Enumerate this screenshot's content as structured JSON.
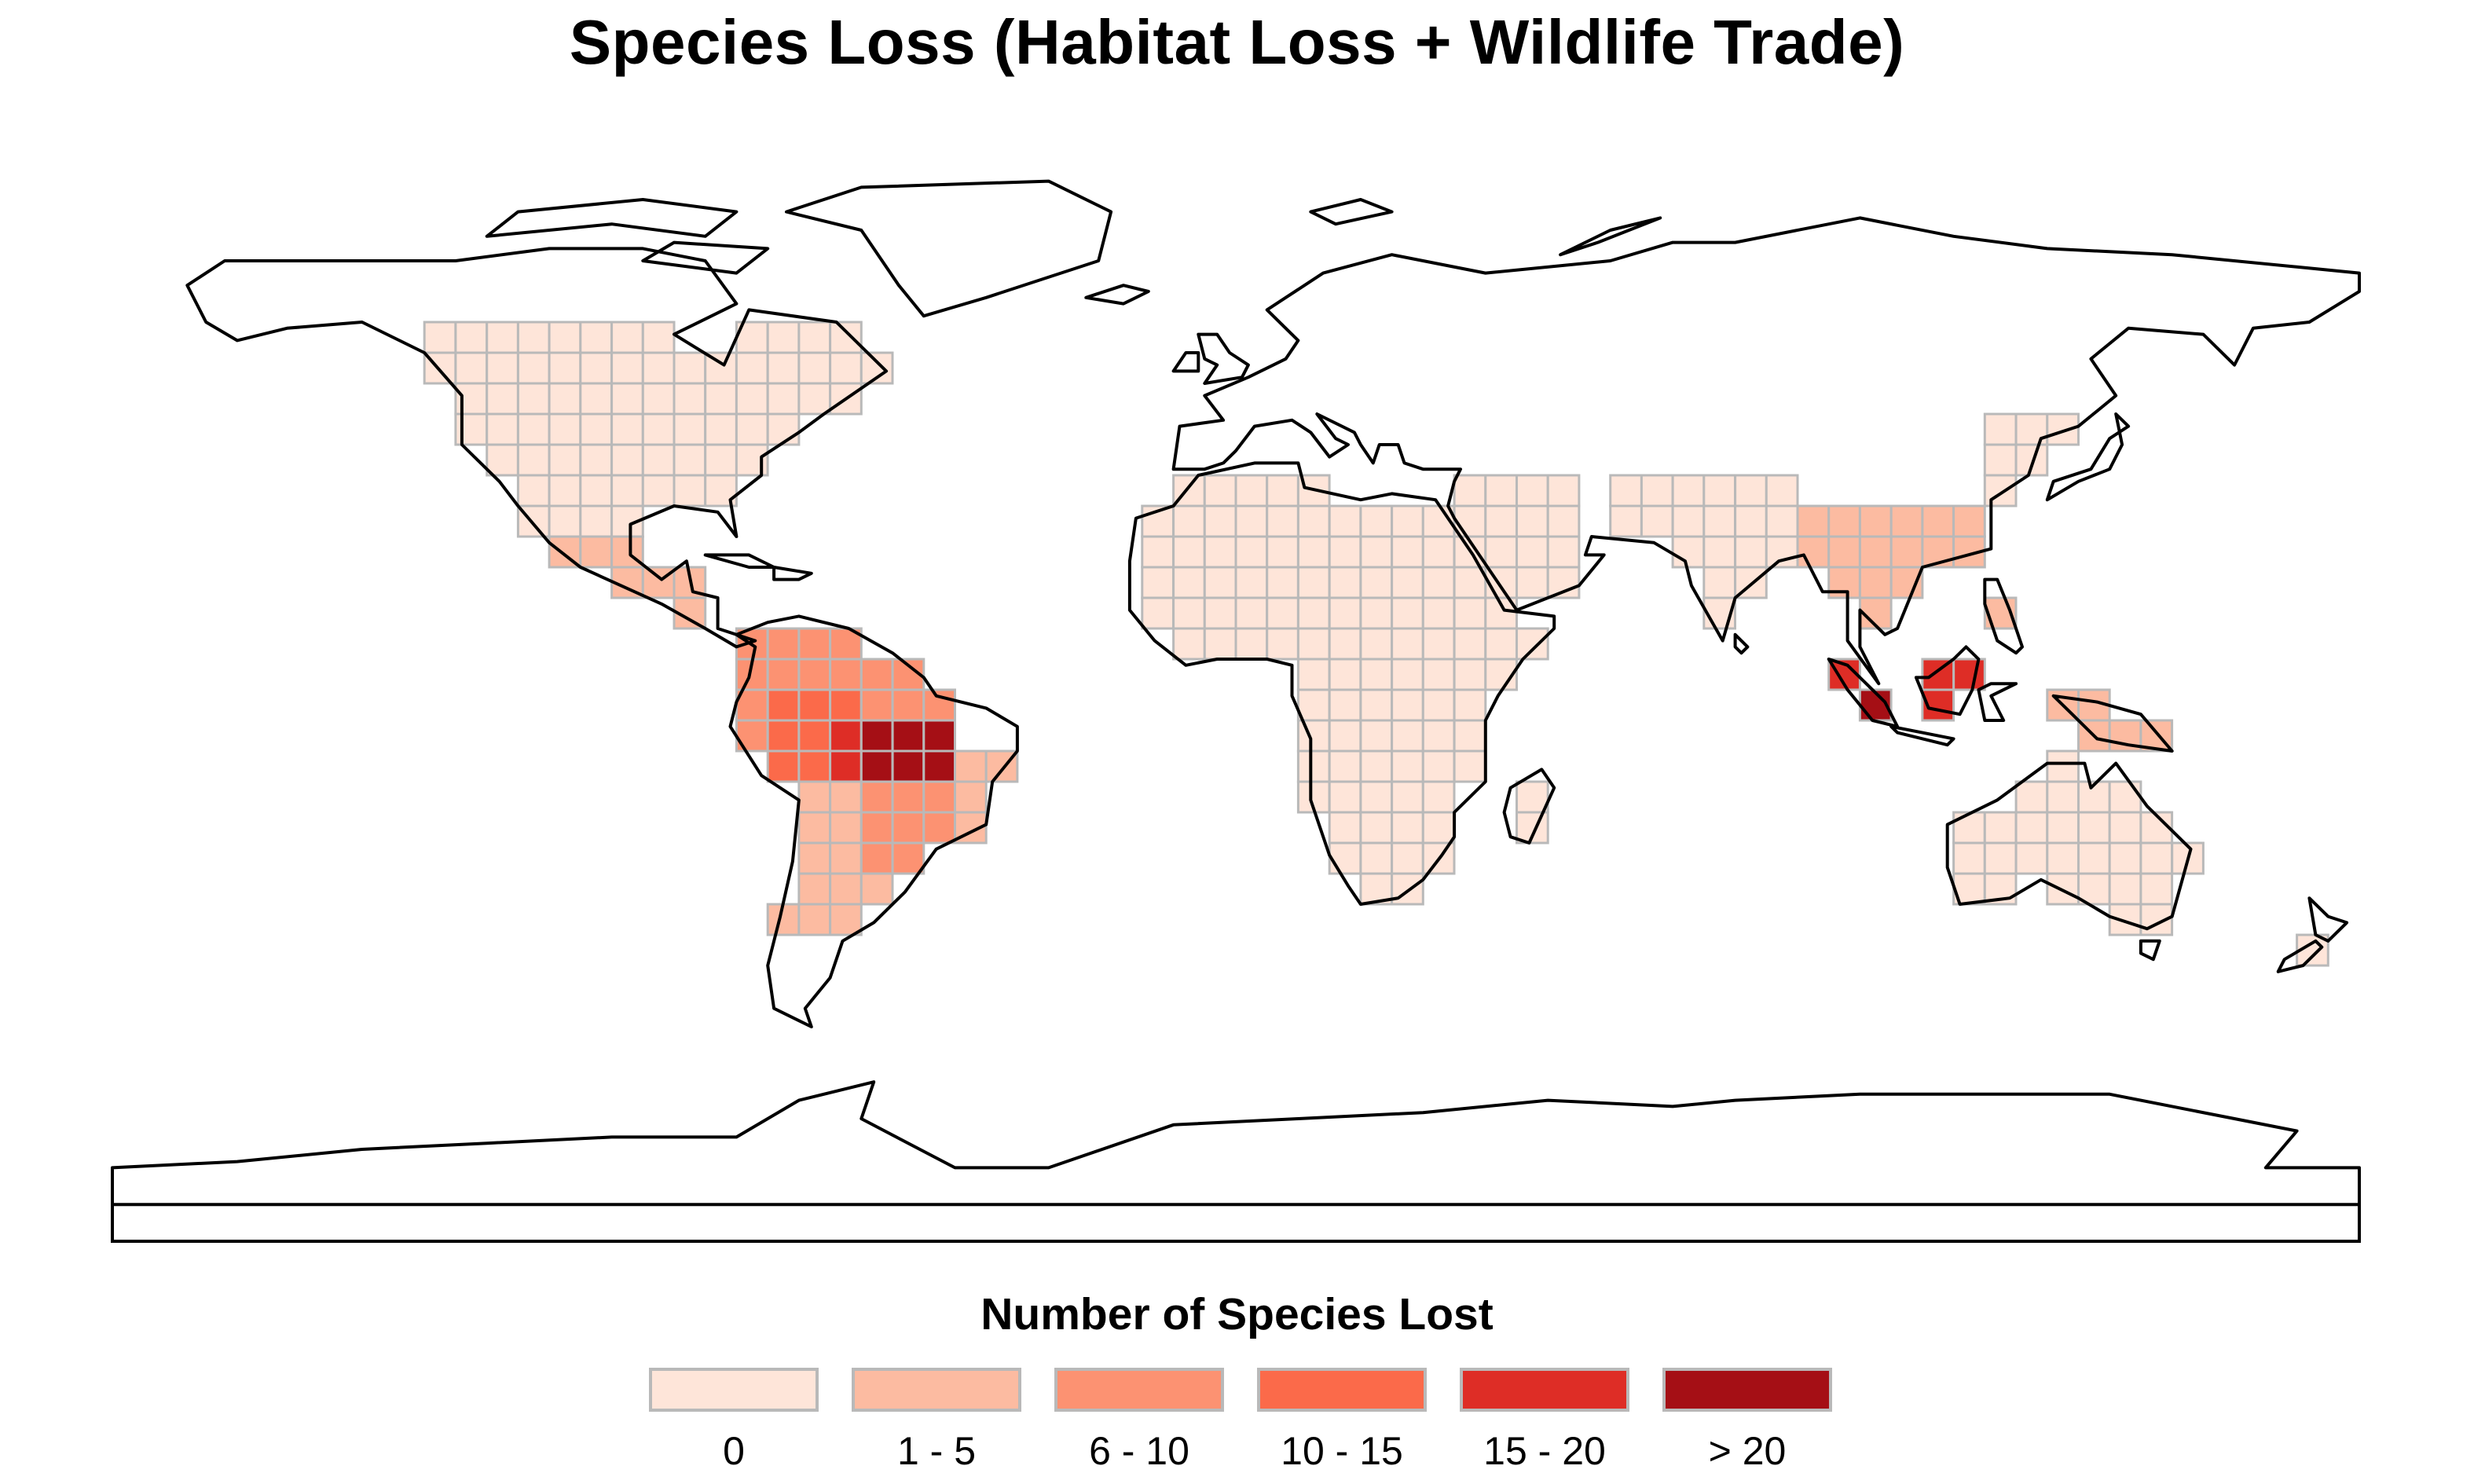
{
  "title": "Species Loss (Habitat Loss + Wildlife Trade)",
  "legend": {
    "title": "Number of Species Lost",
    "items": [
      {
        "label": "0",
        "color": "#fee5d9"
      },
      {
        "label": "1 - 5",
        "color": "#fcbba1"
      },
      {
        "label": "6 - 10",
        "color": "#fc9272"
      },
      {
        "label": "10 - 15",
        "color": "#fb6a4a"
      },
      {
        "label": "15 - 20",
        "color": "#de2d26"
      },
      {
        "label": "> 20",
        "color": "#a50f15"
      }
    ]
  },
  "map": {
    "projection": "equirectangular",
    "grid_cell_degrees": 5,
    "cell_border_color": "#b9b9b9",
    "country_outline_color": "#000000",
    "background": "#ffffff",
    "regions": [
      {
        "name": "North America",
        "class": 0
      },
      {
        "name": "Mexico and Central America",
        "class": 1
      },
      {
        "name": "Northern South America",
        "class": 2
      },
      {
        "name": "Central Brazil",
        "class": 5
      },
      {
        "name": "Southern South America",
        "class": 1
      },
      {
        "name": "Africa",
        "class": 0
      },
      {
        "name": "India and Southeast Asia",
        "class": 1
      },
      {
        "name": "Borneo and Sumatra",
        "class": 4
      },
      {
        "name": "Australia and New Zealand",
        "class": 0
      },
      {
        "name": "Pacific Islands",
        "class": 0
      }
    ]
  }
}
